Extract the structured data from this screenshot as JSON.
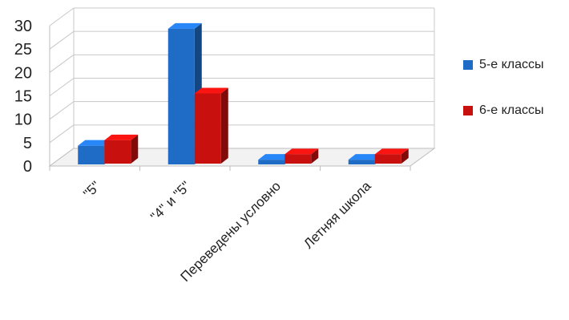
{
  "chart_data": {
    "type": "bar",
    "categories": [
      "\"5\"",
      "\"4\" и \"5\"",
      "Переведены условно",
      "Летняя школа"
    ],
    "series": [
      {
        "name": "5-е классы",
        "color": "#1F6CC7",
        "values": [
          4,
          29,
          1,
          1
        ]
      },
      {
        "name": "6-е классы",
        "color": "#C8110E",
        "values": [
          5,
          15,
          2,
          2
        ]
      }
    ],
    "ylim": [
      0,
      30
    ],
    "yticks": [
      0,
      5,
      10,
      15,
      20,
      25,
      30
    ],
    "grid": true,
    "legend": "right",
    "title": "",
    "xlabel": "",
    "ylabel": ""
  }
}
